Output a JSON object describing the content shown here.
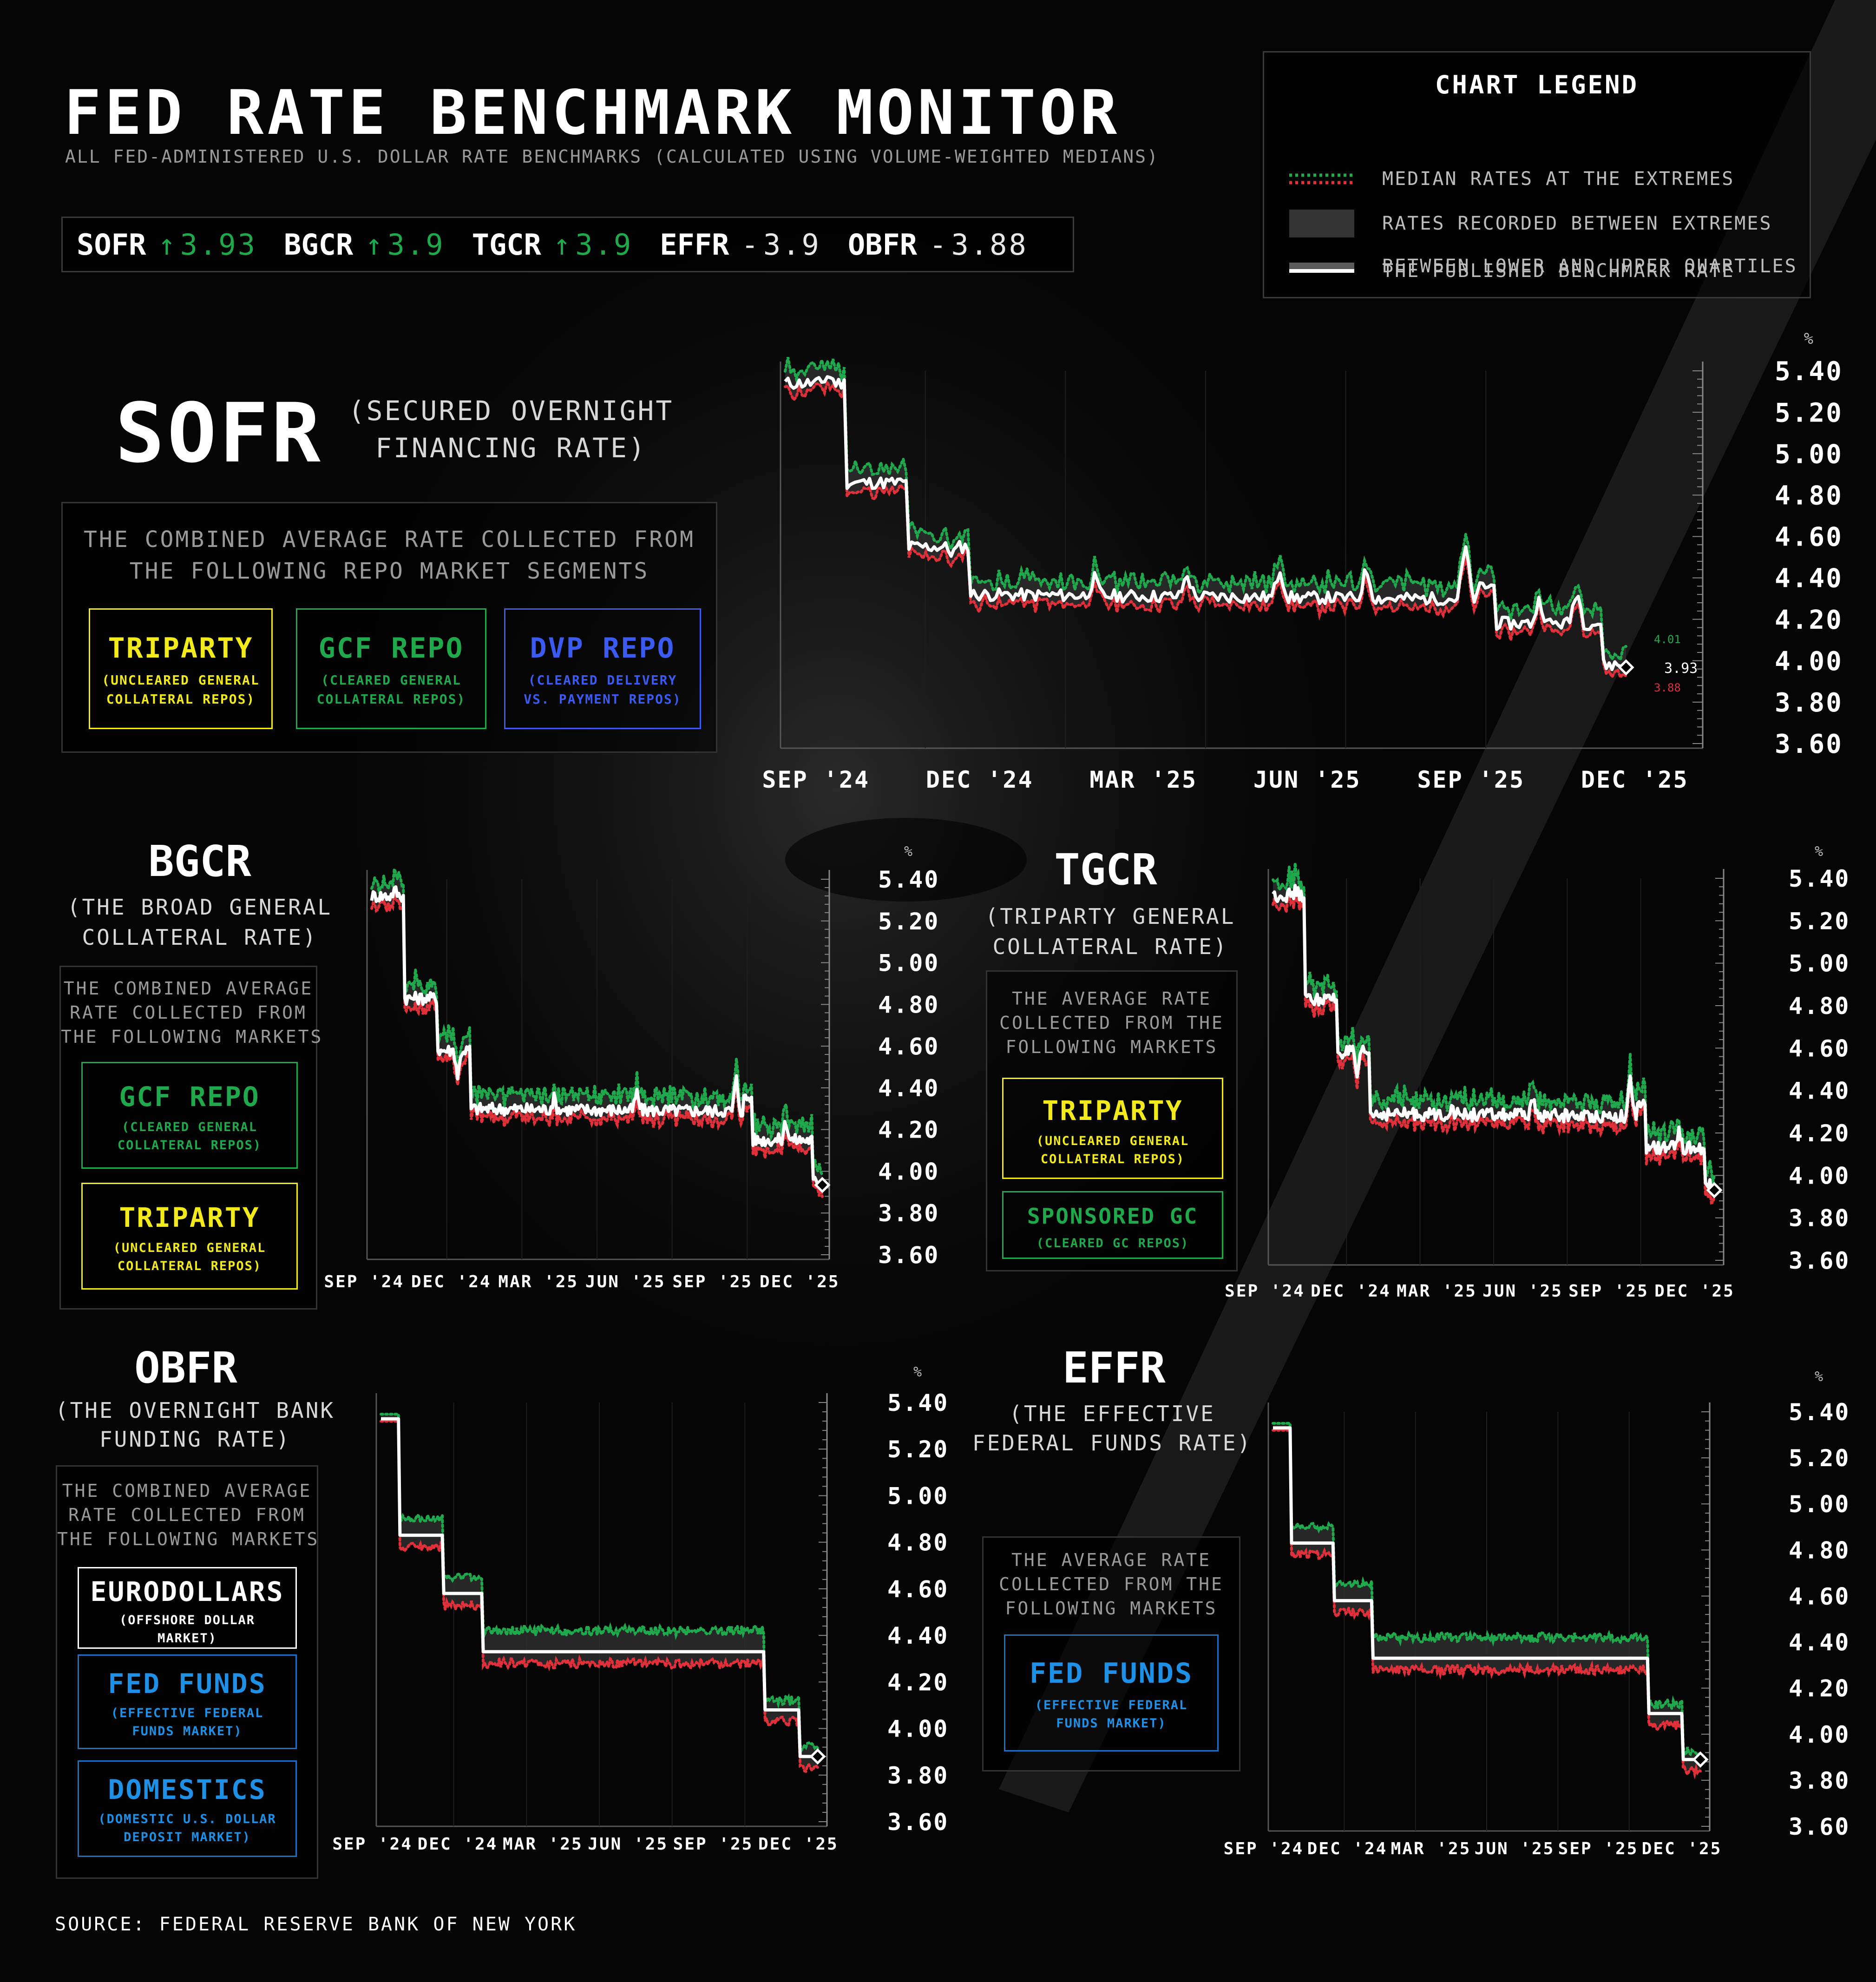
{
  "title": "FED RATE BENCHMARK MONITOR",
  "subtitle": "ALL FED-ADMINISTERED U.S. DOLLAR RATE BENCHMARKS (CALCULATED USING VOLUME-WEIGHTED MEDIANS)",
  "ticker": [
    {
      "name": "SOFR",
      "arrow": "↑",
      "value": "3.93",
      "dir": "up"
    },
    {
      "name": "BGCR",
      "arrow": "↑",
      "value": "3.9",
      "dir": "up"
    },
    {
      "name": "TGCR",
      "arrow": "↑",
      "value": "3.9",
      "dir": "up"
    },
    {
      "name": "EFFR",
      "arrow": "-",
      "value": "3.9",
      "dir": "flat"
    },
    {
      "name": "OBFR",
      "arrow": "-",
      "value": "3.88",
      "dir": "flat"
    }
  ],
  "legend": {
    "title": "CHART LEGEND",
    "items": [
      "MEDIAN RATES AT THE EXTREMES",
      "RATES RECORDED BETWEEN EXTREMES",
      "BETWEEN LOWER AND UPPER QUARTILES",
      "THE PUBLISHED BENCHMARK RATE"
    ]
  },
  "colors": {
    "green": "#1fa84c",
    "red": "#e0303a",
    "yellow": "#f2ea1a",
    "blue": "#3b5bf0",
    "light_blue": "#1e90e6",
    "benchmark": "#ffffff"
  },
  "panels": {
    "sofr": {
      "code": "SOFR",
      "name_line1": "(SECURED OVERNIGHT",
      "name_line2": "FINANCING RATE)",
      "box_line1": "THE COMBINED AVERAGE RATE COLLECTED FROM",
      "box_line2": "THE FOLLOWING REPO MARKET SEGMENTS",
      "segments": [
        {
          "name": "TRIPARTY",
          "d1": "(UNCLEARED GENERAL",
          "d2": "COLLATERAL REPOS)"
        },
        {
          "name": "GCF REPO",
          "d1": "(CLEARED GENERAL",
          "d2": "COLLATERAL REPOS)"
        },
        {
          "name": "DVP REPO",
          "d1": "(CLEARED DELIVERY",
          "d2": "VS. PAYMENT REPOS)"
        }
      ]
    },
    "bgcr": {
      "code": "BGCR",
      "name_line1": "(THE BROAD GENERAL",
      "name_line2": "COLLATERAL RATE)",
      "box_lines": [
        "THE COMBINED AVERAGE",
        "RATE COLLECTED FROM",
        "THE FOLLOWING MARKETS"
      ],
      "segments": [
        {
          "name": "GCF REPO",
          "d1": "(CLEARED GENERAL",
          "d2": "COLLATERAL REPOS)"
        },
        {
          "name": "TRIPARTY",
          "d1": "(UNCLEARED GENERAL",
          "d2": "COLLATERAL REPOS)"
        }
      ]
    },
    "tgcr": {
      "code": "TGCR",
      "name_line1": "(TRIPARTY GENERAL",
      "name_line2": "COLLATERAL RATE)",
      "box_lines": [
        "THE AVERAGE RATE",
        "COLLECTED FROM THE",
        "FOLLOWING MARKETS"
      ],
      "segments": [
        {
          "name": "TRIPARTY",
          "d1": "(UNCLEARED GENERAL",
          "d2": "COLLATERAL REPOS)"
        },
        {
          "name": "SPONSORED GC",
          "d1": "(CLEARED GC REPOS)",
          "d2": ""
        }
      ]
    },
    "obfr": {
      "code": "OBFR",
      "name_line1": "(THE OVERNIGHT BANK",
      "name_line2": "FUNDING RATE)",
      "box_lines": [
        "THE COMBINED AVERAGE",
        "RATE COLLECTED FROM",
        "THE FOLLOWING MARKETS"
      ],
      "segments": [
        {
          "name": "EURODOLLARS",
          "d1": "(OFFSHORE DOLLAR",
          "d2": "MARKET)"
        },
        {
          "name": "FED FUNDS",
          "d1": "(EFFECTIVE FEDERAL",
          "d2": "FUNDS MARKET)"
        },
        {
          "name": "DOMESTICS",
          "d1": "(DOMESTIC U.S. DOLLAR",
          "d2": "DEPOSIT MARKET)"
        }
      ]
    },
    "effr": {
      "code": "EFFR",
      "name_line1": "(THE EFFECTIVE",
      "name_line2": "FEDERAL FUNDS RATE)",
      "box_lines": [
        "THE AVERAGE RATE",
        "COLLECTED FROM THE",
        "FOLLOWING MARKETS"
      ],
      "segments": [
        {
          "name": "FED FUNDS",
          "d1": "(EFFECTIVE FEDERAL",
          "d2": "FUNDS MARKET)"
        }
      ]
    }
  },
  "chart_data": [
    {
      "id": "sofr",
      "type": "line",
      "x_labels": [
        "SEP '24",
        "DEC '24",
        "MAR '25",
        "JUN '25",
        "SEP '25",
        "DEC '25"
      ],
      "y_ticks": [
        "5.40",
        "5.20",
        "5.00",
        "4.80",
        "4.60",
        "4.40",
        "4.20",
        "4.00",
        "3.80",
        "3.60"
      ],
      "y_unit": "%",
      "ylim": [
        3.6,
        5.4
      ],
      "anchors": [
        [
          0,
          5.34
        ],
        [
          0.1,
          4.86
        ],
        [
          0.2,
          4.55
        ],
        [
          0.3,
          4.32
        ],
        [
          1.0,
          4.3
        ],
        [
          1.12,
          4.36
        ],
        [
          1.15,
          4.18
        ],
        [
          1.3,
          4.18
        ],
        [
          1.32,
          3.98
        ],
        [
          1.36,
          3.93
        ]
      ],
      "spikes": [
        [
          0.07,
          5.38
        ],
        [
          0.27,
          4.52
        ],
        [
          0.5,
          4.4
        ],
        [
          0.65,
          4.42
        ],
        [
          0.8,
          4.45
        ],
        [
          0.94,
          4.45
        ],
        [
          1.1,
          4.56
        ],
        [
          1.22,
          4.3
        ],
        [
          1.28,
          4.35
        ]
      ],
      "annotations": {
        "upper": "4.01",
        "last": "3.93",
        "lower": "3.88"
      }
    },
    {
      "id": "bgcr",
      "type": "line",
      "x_labels": [
        "SEP '24",
        "DEC '24",
        "MAR '25",
        "JUN '25",
        "SEP '25",
        "DEC '25"
      ],
      "y_ticks": [
        "5.40",
        "5.20",
        "5.00",
        "4.80",
        "4.60",
        "4.40",
        "4.20",
        "4.00",
        "3.80",
        "3.60"
      ],
      "y_unit": "%",
      "ylim": [
        3.6,
        5.4
      ],
      "anchors": [
        [
          0,
          5.32
        ],
        [
          0.1,
          4.83
        ],
        [
          0.2,
          4.58
        ],
        [
          0.3,
          4.3
        ],
        [
          1.0,
          4.29
        ],
        [
          1.12,
          4.35
        ],
        [
          1.15,
          4.15
        ],
        [
          1.3,
          4.15
        ],
        [
          1.33,
          3.95
        ],
        [
          1.36,
          3.9
        ]
      ],
      "spikes": [
        [
          0.07,
          5.35
        ],
        [
          0.26,
          4.45
        ],
        [
          0.55,
          4.35
        ],
        [
          0.8,
          4.38
        ],
        [
          1.1,
          4.45
        ],
        [
          1.25,
          4.25
        ]
      ],
      "annotations": {}
    },
    {
      "id": "tgcr",
      "type": "line",
      "x_labels": [
        "SEP '24",
        "DEC '24",
        "MAR '25",
        "JUN '25",
        "SEP '25",
        "DEC '25"
      ],
      "y_ticks": [
        "5.40",
        "5.20",
        "5.00",
        "4.80",
        "4.60",
        "4.40",
        "4.20",
        "4.00",
        "3.80",
        "3.60"
      ],
      "y_unit": "%",
      "ylim": [
        3.6,
        5.4
      ],
      "anchors": [
        [
          0,
          5.32
        ],
        [
          0.1,
          4.83
        ],
        [
          0.2,
          4.58
        ],
        [
          0.3,
          4.29
        ],
        [
          1.0,
          4.28
        ],
        [
          1.12,
          4.33
        ],
        [
          1.15,
          4.13
        ],
        [
          1.3,
          4.13
        ],
        [
          1.33,
          3.95
        ],
        [
          1.36,
          3.9
        ]
      ],
      "spikes": [
        [
          0.07,
          5.34
        ],
        [
          0.26,
          4.45
        ],
        [
          0.55,
          4.33
        ],
        [
          0.8,
          4.36
        ],
        [
          1.1,
          4.45
        ],
        [
          1.25,
          4.22
        ]
      ],
      "annotations": {}
    },
    {
      "id": "obfr",
      "type": "line",
      "x_labels": [
        "SEP '24",
        "DEC '24",
        "MAR '25",
        "JUN '25",
        "SEP '25",
        "DEC '25"
      ],
      "y_ticks": [
        "5.40",
        "5.20",
        "5.00",
        "4.80",
        "4.60",
        "4.40",
        "4.20",
        "4.00",
        "3.80",
        "3.60"
      ],
      "y_unit": "%",
      "ylim": [
        3.6,
        5.4
      ],
      "steps": [
        [
          0,
          5.33
        ],
        [
          0.04,
          4.83
        ],
        [
          0.14,
          4.58
        ],
        [
          0.23,
          4.33
        ],
        [
          0.87,
          4.08
        ],
        [
          0.95,
          3.88
        ]
      ],
      "annotations": {}
    },
    {
      "id": "effr",
      "type": "line",
      "x_labels": [
        "SEP '24",
        "DEC '24",
        "MAR '25",
        "JUN '25",
        "SEP '25",
        "DEC '25"
      ],
      "y_ticks": [
        "5.40",
        "5.20",
        "5.00",
        "4.80",
        "4.60",
        "4.40",
        "4.20",
        "4.00",
        "3.80",
        "3.60"
      ],
      "y_unit": "%",
      "ylim": [
        3.6,
        5.4
      ],
      "steps": [
        [
          0,
          5.33
        ],
        [
          0.04,
          4.83
        ],
        [
          0.14,
          4.58
        ],
        [
          0.23,
          4.33
        ],
        [
          0.87,
          4.09
        ],
        [
          0.95,
          3.89
        ]
      ],
      "annotations": {}
    }
  ],
  "source": "SOURCE: FEDERAL RESERVE BANK OF NEW YORK"
}
